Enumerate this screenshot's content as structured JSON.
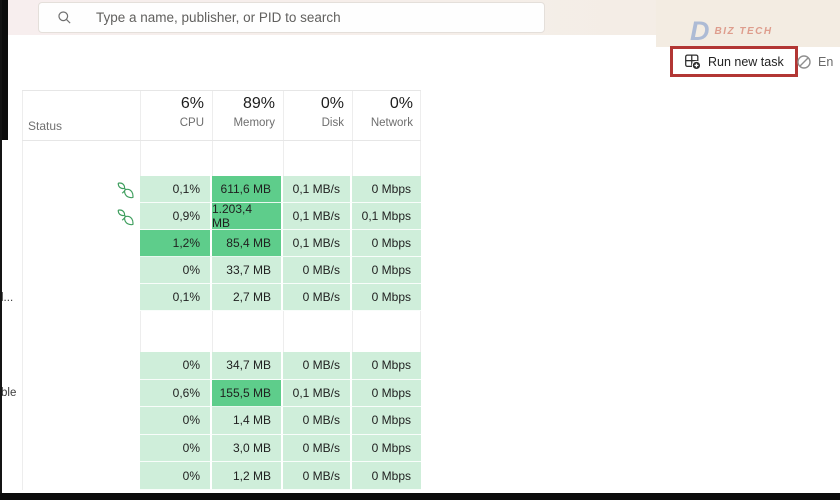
{
  "topbar": {
    "search": {
      "placeholder": "Type a name, publisher, or PID to search"
    },
    "watermark": {
      "letter": "D",
      "text": "BIZ TECH"
    }
  },
  "toolbar": {
    "run_new_task_label": "Run new task",
    "end_task_partial_label": "En"
  },
  "process_table": {
    "header": {
      "status_label": "Status",
      "cpu_percent": "6%",
      "cpu_label": "CPU",
      "memory_percent": "89%",
      "memory_label": "Memory",
      "disk_percent": "0%",
      "disk_label": "Disk",
      "network_percent": "0%",
      "network_label": "Network"
    },
    "groups": [
      {
        "rows": [
          {
            "name_fragment": "",
            "efficiency_mode": true,
            "cpu": "0,1%",
            "memory": "611,6 MB",
            "disk": "0,1 MB/s",
            "network": "0 Mbps",
            "hot": [
              "memory"
            ]
          },
          {
            "name_fragment": "",
            "efficiency_mode": true,
            "cpu": "0,9%",
            "memory": "1.203,4 MB",
            "disk": "0,1 MB/s",
            "network": "0,1 Mbps",
            "hot": [
              "memory"
            ]
          },
          {
            "name_fragment": "",
            "efficiency_mode": false,
            "cpu": "1,2%",
            "memory": "85,4 MB",
            "disk": "0,1 MB/s",
            "network": "0 Mbps",
            "hot": [
              "cpu",
              "memory"
            ]
          },
          {
            "name_fragment": "",
            "efficiency_mode": false,
            "cpu": "0%",
            "memory": "33,7 MB",
            "disk": "0 MB/s",
            "network": "0 Mbps",
            "hot": []
          },
          {
            "name_fragment": "l...",
            "efficiency_mode": false,
            "cpu": "0,1%",
            "memory": "2,7 MB",
            "disk": "0 MB/s",
            "network": "0 Mbps",
            "hot": []
          }
        ]
      },
      {
        "rows": [
          {
            "name_fragment": "",
            "efficiency_mode": false,
            "cpu": "0%",
            "memory": "34,7 MB",
            "disk": "0 MB/s",
            "network": "0 Mbps",
            "hot": []
          },
          {
            "name_fragment": "ble",
            "efficiency_mode": false,
            "cpu": "0,6%",
            "memory": "155,5 MB",
            "disk": "0,1 MB/s",
            "network": "0 Mbps",
            "hot": [
              "memory"
            ]
          },
          {
            "name_fragment": "",
            "efficiency_mode": false,
            "cpu": "0%",
            "memory": "1,4 MB",
            "disk": "0 MB/s",
            "network": "0 Mbps",
            "hot": []
          },
          {
            "name_fragment": "",
            "efficiency_mode": false,
            "cpu": "0%",
            "memory": "3,0 MB",
            "disk": "0 MB/s",
            "network": "0 Mbps",
            "hot": []
          },
          {
            "name_fragment": "",
            "efficiency_mode": false,
            "cpu": "0%",
            "memory": "1,2 MB",
            "disk": "0 MB/s",
            "network": "0 Mbps",
            "hot": []
          }
        ]
      }
    ]
  },
  "colors": {
    "heat_light": "#cfeeda",
    "heat_hot": "#5ecd8b",
    "annotation_red": "#b23634",
    "leaf_green": "#3f9e5e",
    "topbar_beige": "#f3ece2"
  }
}
